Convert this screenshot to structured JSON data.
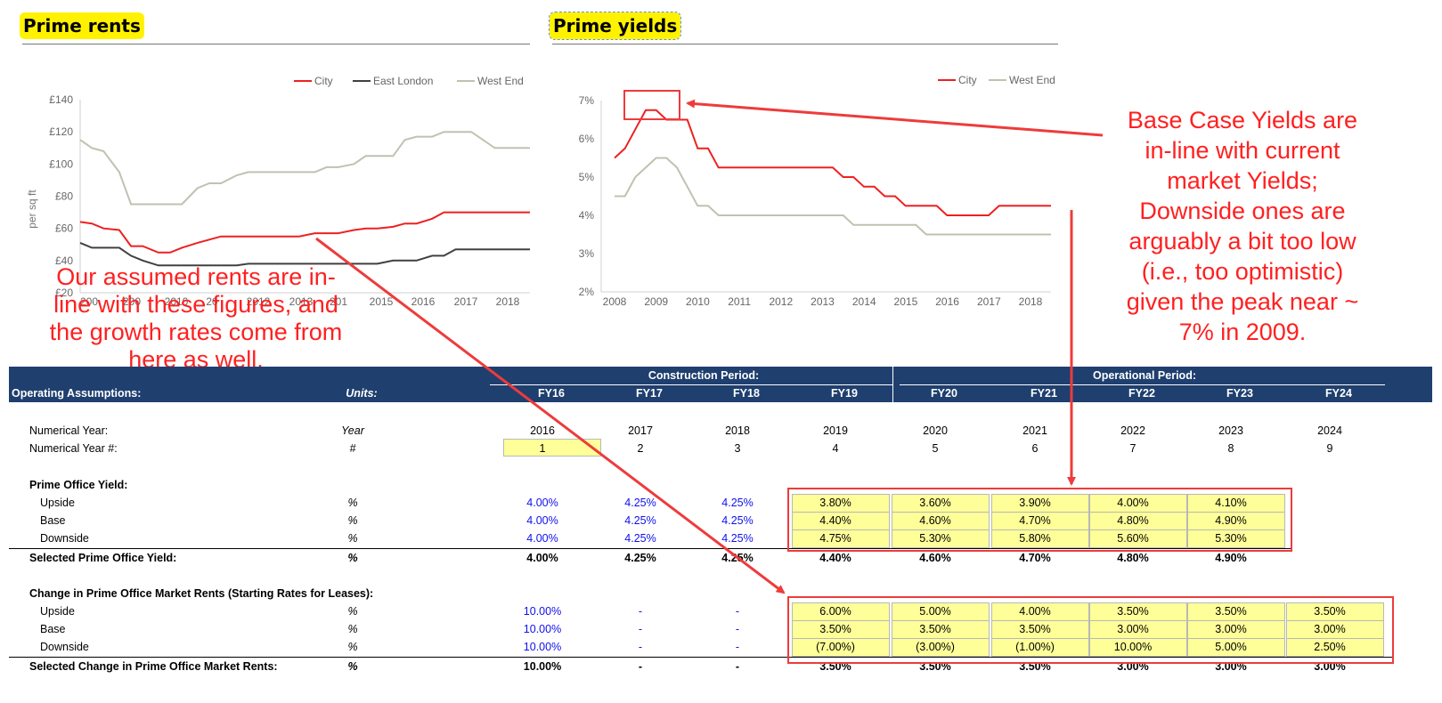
{
  "titles": {
    "rents": "Prime rents",
    "yields": "Prime yields"
  },
  "rents_chart": {
    "legend": [
      {
        "name": "City",
        "color": "#ee2020"
      },
      {
        "name": "East London",
        "color": "#404040"
      },
      {
        "name": "West End",
        "color": "#c2c0b0"
      }
    ],
    "y_axis_title": "per sq ft",
    "y_ticks": [
      "£140",
      "£120",
      "£100",
      "£80",
      "£60",
      "£40",
      "£20"
    ],
    "x_ticks": [
      "200",
      "200",
      "2010",
      "20",
      "2012",
      "2013",
      "201",
      "2015",
      "2016",
      "2017",
      "2018"
    ]
  },
  "yields_chart": {
    "legend": [
      {
        "name": "City",
        "color": "#ee2020"
      },
      {
        "name": "West End",
        "color": "#c2c0b0"
      }
    ],
    "y_ticks": [
      "7%",
      "6%",
      "5%",
      "4%",
      "3%",
      "2%"
    ],
    "x_ticks": [
      "2008",
      "2009",
      "2010",
      "2011",
      "2012",
      "2013",
      "2014",
      "2015",
      "2016",
      "2017",
      "2018"
    ]
  },
  "chart_data": [
    {
      "type": "line",
      "title": "Prime rents",
      "ylabel": "per sq ft",
      "ylim": [
        20,
        140
      ],
      "xlim": [
        2007.2,
        2018.7
      ],
      "series": [
        {
          "name": "City",
          "x": [
            2007.2,
            2007.5,
            2007.8,
            2008.2,
            2008.5,
            2008.8,
            2009.2,
            2009.5,
            2009.8,
            2010.2,
            2010.5,
            2010.8,
            2011.2,
            2011.5,
            2011.8,
            2012.2,
            2012.5,
            2012.8,
            2013.2,
            2013.5,
            2013.8,
            2014.2,
            2014.5,
            2014.8,
            2015.2,
            2015.5,
            2015.8,
            2016.2,
            2016.5,
            2016.8,
            2017.2,
            2017.5,
            2017.8,
            2018.2,
            2018.5,
            2018.7
          ],
          "values": [
            64,
            63,
            60,
            59,
            49,
            49,
            45,
            45,
            48,
            51,
            53,
            55,
            55,
            55,
            55,
            55,
            55,
            55,
            57,
            57,
            57,
            59,
            60,
            60,
            61,
            63,
            63,
            66,
            70,
            70,
            70,
            70,
            70,
            70,
            70,
            70
          ]
        },
        {
          "name": "East London",
          "x": [
            2007.2,
            2007.5,
            2007.8,
            2008.2,
            2008.5,
            2008.8,
            2009.2,
            2009.5,
            2009.8,
            2010.2,
            2010.5,
            2010.8,
            2011.2,
            2011.5,
            2011.8,
            2012.2,
            2012.5,
            2012.8,
            2013.2,
            2013.5,
            2013.8,
            2014.2,
            2014.5,
            2014.8,
            2015.2,
            2015.5,
            2015.8,
            2016.2,
            2016.5,
            2016.8,
            2017.2,
            2017.5,
            2017.8,
            2018.2,
            2018.5,
            2018.7
          ],
          "values": [
            51,
            48,
            48,
            48,
            43,
            40,
            37,
            37,
            37,
            37,
            37,
            37,
            37,
            38,
            38,
            38,
            38,
            38,
            38,
            38,
            38,
            38,
            38,
            38,
            40,
            40,
            40,
            43,
            43,
            47,
            47,
            47,
            47,
            47,
            47,
            47
          ]
        },
        {
          "name": "West End",
          "x": [
            2007.2,
            2007.5,
            2007.8,
            2008.2,
            2008.5,
            2008.8,
            2009.2,
            2009.5,
            2009.8,
            2010.2,
            2010.5,
            2010.8,
            2011.2,
            2011.5,
            2011.8,
            2012.2,
            2012.5,
            2012.8,
            2013.2,
            2013.5,
            2013.8,
            2014.2,
            2014.5,
            2014.8,
            2015.2,
            2015.5,
            2015.8,
            2016.2,
            2016.5,
            2016.8,
            2017.2,
            2017.5,
            2017.8,
            2018.2,
            2018.5,
            2018.7
          ],
          "values": [
            115,
            110,
            108,
            95,
            75,
            75,
            75,
            75,
            75,
            85,
            88,
            88,
            93,
            95,
            95,
            95,
            95,
            95,
            95,
            98,
            98,
            100,
            105,
            105,
            105,
            115,
            117,
            117,
            120,
            120,
            120,
            115,
            110,
            110,
            110,
            110
          ]
        }
      ]
    },
    {
      "type": "line",
      "title": "Prime yields",
      "ylim": [
        2,
        7
      ],
      "xlim": [
        2008,
        2018.5
      ],
      "series": [
        {
          "name": "City",
          "x": [
            2008,
            2008.25,
            2008.5,
            2008.75,
            2009,
            2009.25,
            2009.5,
            2009.75,
            2010,
            2010.25,
            2010.5,
            2010.75,
            2011,
            2011.25,
            2011.5,
            2011.75,
            2012,
            2012.25,
            2012.5,
            2012.75,
            2013,
            2013.25,
            2013.5,
            2013.75,
            2014,
            2014.25,
            2014.5,
            2014.75,
            2015,
            2015.25,
            2015.5,
            2015.75,
            2016,
            2016.25,
            2016.5,
            2016.75,
            2017,
            2017.25,
            2017.5,
            2017.75,
            2018,
            2018.25,
            2018.5
          ],
          "values": [
            5.5,
            5.75,
            6.25,
            6.75,
            6.75,
            6.5,
            6.5,
            6.5,
            5.75,
            5.75,
            5.25,
            5.25,
            5.25,
            5.25,
            5.25,
            5.25,
            5.25,
            5.25,
            5.25,
            5.25,
            5.25,
            5.25,
            5.0,
            5.0,
            4.75,
            4.75,
            4.5,
            4.5,
            4.25,
            4.25,
            4.25,
            4.25,
            4.0,
            4.0,
            4.0,
            4.0,
            4.0,
            4.25,
            4.25,
            4.25,
            4.25,
            4.25,
            4.25
          ]
        },
        {
          "name": "West End",
          "x": [
            2008,
            2008.25,
            2008.5,
            2008.75,
            2009,
            2009.25,
            2009.5,
            2009.75,
            2010,
            2010.25,
            2010.5,
            2010.75,
            2011,
            2011.25,
            2011.5,
            2011.75,
            2012,
            2012.25,
            2012.5,
            2012.75,
            2013,
            2013.25,
            2013.5,
            2013.75,
            2014,
            2014.25,
            2014.5,
            2014.75,
            2015,
            2015.25,
            2015.5,
            2015.75,
            2016,
            2016.25,
            2016.5,
            2016.75,
            2017,
            2017.25,
            2017.5,
            2017.75,
            2018,
            2018.25,
            2018.5
          ],
          "values": [
            4.5,
            4.5,
            5.0,
            5.25,
            5.5,
            5.5,
            5.25,
            4.75,
            4.25,
            4.25,
            4.0,
            4.0,
            4.0,
            4.0,
            4.0,
            4.0,
            4.0,
            4.0,
            4.0,
            4.0,
            4.0,
            4.0,
            4.0,
            3.75,
            3.75,
            3.75,
            3.75,
            3.75,
            3.75,
            3.75,
            3.5,
            3.5,
            3.5,
            3.5,
            3.5,
            3.5,
            3.5,
            3.5,
            3.5,
            3.5,
            3.5,
            3.5,
            3.5
          ]
        }
      ]
    }
  ],
  "notes": {
    "rents": [
      "Our assumed rents are in-",
      "line with these figures, and",
      "the growth rates come from",
      "here as well."
    ],
    "yields": [
      "Base Case Yields are",
      "in-line with current",
      "market Yields;",
      "Downside ones are",
      "arguably a bit too low",
      "(i.e., too optimistic)",
      "given the peak near ~",
      "7% in 2009."
    ]
  },
  "table": {
    "construction_label": "Construction Period:",
    "operational_label": "Operational Period:",
    "section_label": "Operating Assumptions:",
    "units_label": "Units:",
    "fy": [
      "FY16",
      "FY17",
      "FY18",
      "FY19",
      "FY20",
      "FY21",
      "FY22",
      "FY23",
      "FY24"
    ],
    "rows": {
      "num_year": {
        "label": "Numerical Year:",
        "unit": "Year",
        "values": [
          "2016",
          "2017",
          "2018",
          "2019",
          "2020",
          "2021",
          "2022",
          "2023",
          "2024"
        ]
      },
      "num_year_idx": {
        "label": "Numerical Year #:",
        "unit": "#",
        "values": [
          "1",
          "2",
          "3",
          "4",
          "5",
          "6",
          "7",
          "8",
          "9"
        ]
      },
      "yield_header": {
        "label": "Prime Office Yield:"
      },
      "yield_upside": {
        "label": "Upside",
        "unit": "%",
        "values": [
          "4.00%",
          "4.25%",
          "4.25%",
          "3.80%",
          "3.60%",
          "3.90%",
          "4.00%",
          "4.10%"
        ]
      },
      "yield_base": {
        "label": "Base",
        "unit": "%",
        "values": [
          "4.00%",
          "4.25%",
          "4.25%",
          "4.40%",
          "4.60%",
          "4.70%",
          "4.80%",
          "4.90%"
        ]
      },
      "yield_downside": {
        "label": "Downside",
        "unit": "%",
        "values": [
          "4.00%",
          "4.25%",
          "4.25%",
          "4.75%",
          "5.30%",
          "5.80%",
          "5.60%",
          "5.30%"
        ]
      },
      "yield_selected": {
        "label": "Selected Prime Office Yield:",
        "unit": "%",
        "values": [
          "4.00%",
          "4.25%",
          "4.25%",
          "4.40%",
          "4.60%",
          "4.70%",
          "4.80%",
          "4.90%"
        ]
      },
      "rent_header": {
        "label": "Change in Prime Office Market Rents (Starting Rates for Leases):"
      },
      "rent_upside": {
        "label": "Upside",
        "unit": "%",
        "values": [
          "10.00%",
          "-",
          "-",
          "6.00%",
          "5.00%",
          "4.00%",
          "3.50%",
          "3.50%",
          "3.50%"
        ]
      },
      "rent_base": {
        "label": "Base",
        "unit": "%",
        "values": [
          "10.00%",
          "-",
          "-",
          "3.50%",
          "3.50%",
          "3.50%",
          "3.00%",
          "3.00%",
          "3.00%"
        ]
      },
      "rent_downside": {
        "label": "Downside",
        "unit": "%",
        "values": [
          "10.00%",
          "-",
          "-",
          "(7.00%)",
          "(3.00%)",
          "(1.00%)",
          "10.00%",
          "5.00%",
          "2.50%"
        ]
      },
      "rent_selected": {
        "label": "Selected Change in Prime Office Market Rents:",
        "unit": "%",
        "values": [
          "10.00%",
          "-",
          "-",
          "3.50%",
          "3.50%",
          "3.50%",
          "3.00%",
          "3.00%",
          "3.00%"
        ]
      }
    }
  }
}
